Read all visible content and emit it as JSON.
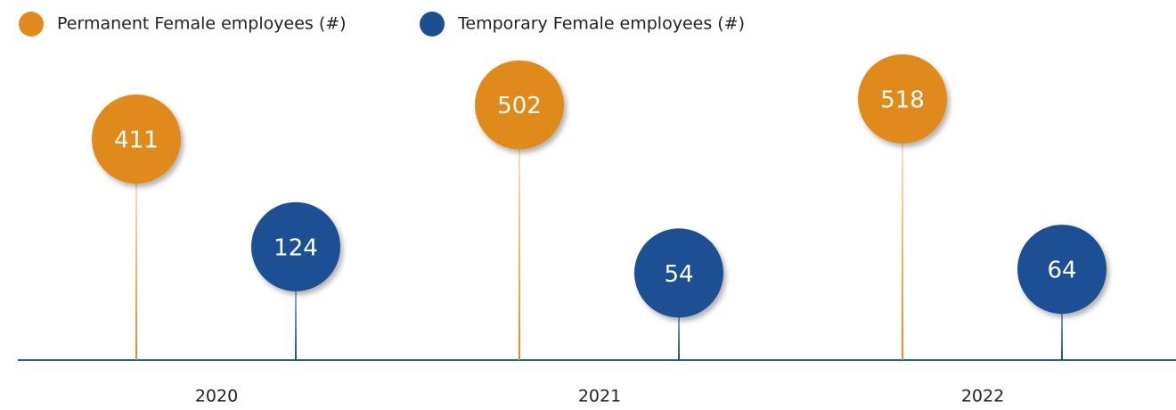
{
  "chart_data": {
    "type": "lollipop",
    "categories": [
      "2020",
      "2021",
      "2022"
    ],
    "series": [
      {
        "name": "Permanent Female employees (#)",
        "color": "#e08a1e",
        "values": [
          411,
          502,
          518
        ]
      },
      {
        "name": "Temporary Female employees (#)",
        "color": "#1a4f94",
        "values": [
          124,
          54,
          64
        ]
      }
    ]
  }
}
